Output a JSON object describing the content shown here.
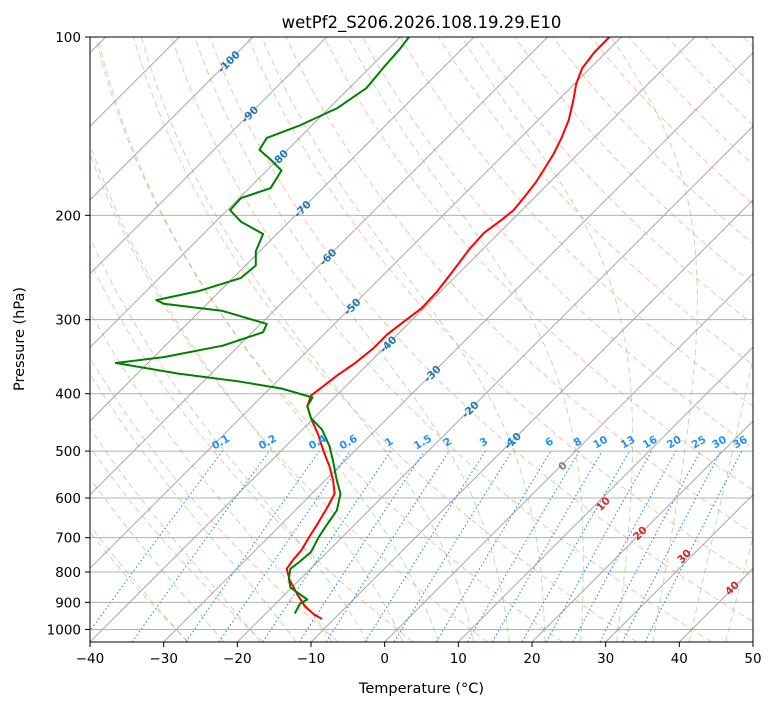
{
  "chart_data": {
    "type": "line",
    "subtype": "skew-T log-P sounding",
    "title": "wetPf2_S206.2026.108.19.29.E10",
    "xlabel": "Temperature (°C)",
    "ylabel": "Pressure (hPa)",
    "xlim": [
      -40,
      50
    ],
    "ylim": [
      1050,
      100
    ],
    "y_scale": "log",
    "grid": true,
    "x_ticks": [
      "−40",
      "−30",
      "−20",
      "−10",
      "0",
      "10",
      "20",
      "30",
      "40",
      "50"
    ],
    "y_ticks": [
      {
        "p": 100,
        "label": "100"
      },
      {
        "p": 200,
        "label": "200"
      },
      {
        "p": 300,
        "label": "300"
      },
      {
        "p": 400,
        "label": "400"
      },
      {
        "p": 500,
        "label": "500"
      },
      {
        "p": 600,
        "label": "600"
      },
      {
        "p": 700,
        "label": "700"
      },
      {
        "p": 800,
        "label": "800"
      },
      {
        "p": 900,
        "label": "900"
      },
      {
        "p": 1000,
        "label": "1000"
      }
    ],
    "skew_label_values": [
      "-100",
      "-90",
      "-80",
      "-70",
      "-60",
      "-50",
      "-40",
      "-30",
      "-20",
      "-10"
    ],
    "mixing_ratio_labels": [
      "0.1",
      "0.2",
      "0.4",
      "0.6",
      "1",
      "1.5",
      "2",
      "3",
      "4",
      "6",
      "8",
      "10",
      "13",
      "16",
      "20",
      "25",
      "30",
      "36"
    ],
    "moist_adiabat_labels": [
      "0",
      "10",
      "20",
      "30",
      "40"
    ],
    "series": [
      {
        "color": "#ff0000",
        "variable": "temperature",
        "points": [
          [
            -8.5,
            960
          ],
          [
            -9.5,
            945
          ],
          [
            -10.8,
            915
          ],
          [
            -11.8,
            875
          ],
          [
            -12.9,
            825
          ],
          [
            -13.3,
            790
          ],
          [
            -12.5,
            765
          ],
          [
            -11.3,
            735
          ],
          [
            -10.3,
            700
          ],
          [
            -9.0,
            660
          ],
          [
            -7.7,
            620
          ],
          [
            -6.8,
            590
          ],
          [
            -7.0,
            560
          ],
          [
            -7.5,
            530
          ],
          [
            -8.3,
            500
          ],
          [
            -9.0,
            470
          ],
          [
            -10.0,
            440
          ],
          [
            -10.5,
            420
          ],
          [
            -10.0,
            403
          ],
          [
            -8.5,
            390
          ],
          [
            -6.5,
            373
          ],
          [
            -4.0,
            355
          ],
          [
            -1.5,
            335
          ],
          [
            0.3,
            318
          ],
          [
            2.5,
            303
          ],
          [
            5.0,
            287
          ],
          [
            7.0,
            270
          ],
          [
            9.3,
            248
          ],
          [
            11.5,
            228
          ],
          [
            13.5,
            214
          ],
          [
            16.0,
            203
          ],
          [
            17.5,
            196
          ],
          [
            19.0,
            186
          ],
          [
            20.5,
            176
          ],
          [
            21.8,
            166
          ],
          [
            23.0,
            157
          ],
          [
            24.0,
            148
          ],
          [
            25.0,
            138
          ],
          [
            25.6,
            128
          ],
          [
            26.0,
            120
          ],
          [
            26.8,
            113
          ],
          [
            28.5,
            106
          ],
          [
            30.5,
            100
          ]
        ]
      },
      {
        "color": "#008000",
        "variable": "dewpoint",
        "points": [
          [
            -12.2,
            940
          ],
          [
            -11.5,
            905
          ],
          [
            -10.5,
            890
          ],
          [
            -12.8,
            850
          ],
          [
            -13.0,
            820
          ],
          [
            -12.8,
            790
          ],
          [
            -11.5,
            768
          ],
          [
            -10.0,
            740
          ],
          [
            -9.0,
            700
          ],
          [
            -8.0,
            670
          ],
          [
            -6.5,
            630
          ],
          [
            -6.0,
            590
          ],
          [
            -6.5,
            560
          ],
          [
            -7.0,
            520
          ],
          [
            -7.5,
            490
          ],
          [
            -8.5,
            460
          ],
          [
            -10.0,
            440
          ],
          [
            -10.5,
            420
          ],
          [
            -9.8,
            406
          ],
          [
            -14.0,
            392
          ],
          [
            -20.0,
            381
          ],
          [
            -28.0,
            370
          ],
          [
            -36.5,
            355
          ],
          [
            -30.0,
            347
          ],
          [
            -22.0,
            332
          ],
          [
            -16.5,
            315
          ],
          [
            -16.0,
            305
          ],
          [
            -22.0,
            290
          ],
          [
            -30.0,
            282
          ],
          [
            -31.0,
            278
          ],
          [
            -25.0,
            268
          ],
          [
            -19.5,
            255
          ],
          [
            -17.5,
            243
          ],
          [
            -17.5,
            230
          ],
          [
            -16.5,
            215
          ],
          [
            -19.5,
            205
          ],
          [
            -21.0,
            196
          ],
          [
            -19.5,
            187
          ],
          [
            -15.5,
            180
          ],
          [
            -14.0,
            168
          ],
          [
            -15.5,
            161
          ],
          [
            -17.0,
            155
          ],
          [
            -16.0,
            148
          ],
          [
            -11.5,
            141
          ],
          [
            -6.5,
            132
          ],
          [
            -2.5,
            122
          ],
          [
            0.0,
            112
          ],
          [
            2.0,
            105
          ],
          [
            3.3,
            100
          ]
        ]
      }
    ]
  }
}
